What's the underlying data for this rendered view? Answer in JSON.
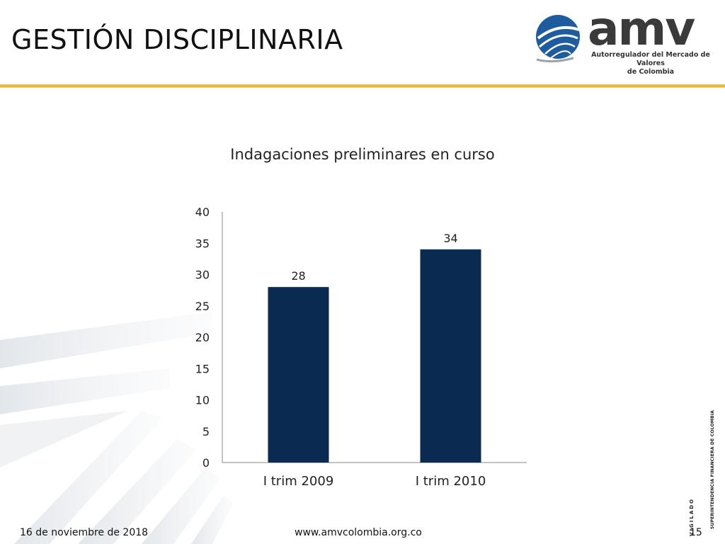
{
  "header": {
    "title": "GESTIÓN DISCIPLINARIA",
    "logo": {
      "wordmark": "amv",
      "subtitle_line1": "Autorregulador del Mercado de Valores",
      "subtitle_line2": "de Colombia",
      "colors": {
        "mark_blue": "#1f5c9e",
        "word_gray": "#3a3a3a"
      }
    },
    "rule_color": "#e8b21e"
  },
  "chart_data": {
    "type": "bar",
    "title": "Indagaciones preliminares en curso",
    "categories": [
      "I trim 2009",
      "I trim 2010"
    ],
    "values": [
      28,
      34
    ],
    "data_labels": [
      "28",
      "34"
    ],
    "ylim": [
      0,
      40
    ],
    "yticks": [
      0,
      5,
      10,
      15,
      20,
      25,
      30,
      35,
      40
    ],
    "xlabel": "",
    "ylabel": "",
    "grid": false,
    "bar_color": "#0b2a52"
  },
  "footer": {
    "date": "16 de noviembre de 2018",
    "url": "www.amvcolombia.org.co",
    "page": "15",
    "vigilado_line1": "SUPERINTENDENCIA FINANCIERA",
    "vigilado_line2": "DE COLOMBIA",
    "vigilado_word": "VIGILADO"
  }
}
